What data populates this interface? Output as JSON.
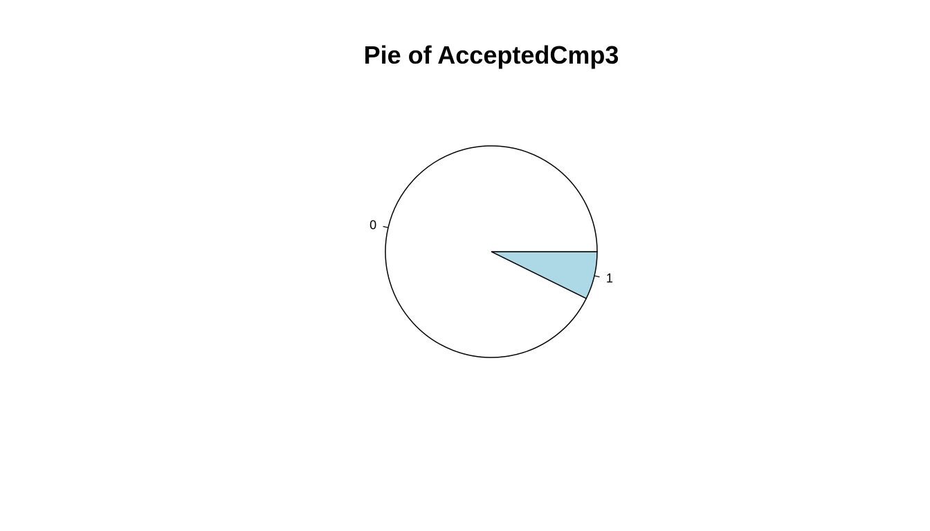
{
  "chart_data": {
    "type": "pie",
    "title": "Pie of AcceptedCmp3",
    "labels": [
      "1",
      "0"
    ],
    "values": [
      0.073,
      0.927
    ],
    "colors": [
      "#add8e6",
      "#ffffff"
    ],
    "start_angle_deg": 0,
    "direction": "clockwise"
  }
}
